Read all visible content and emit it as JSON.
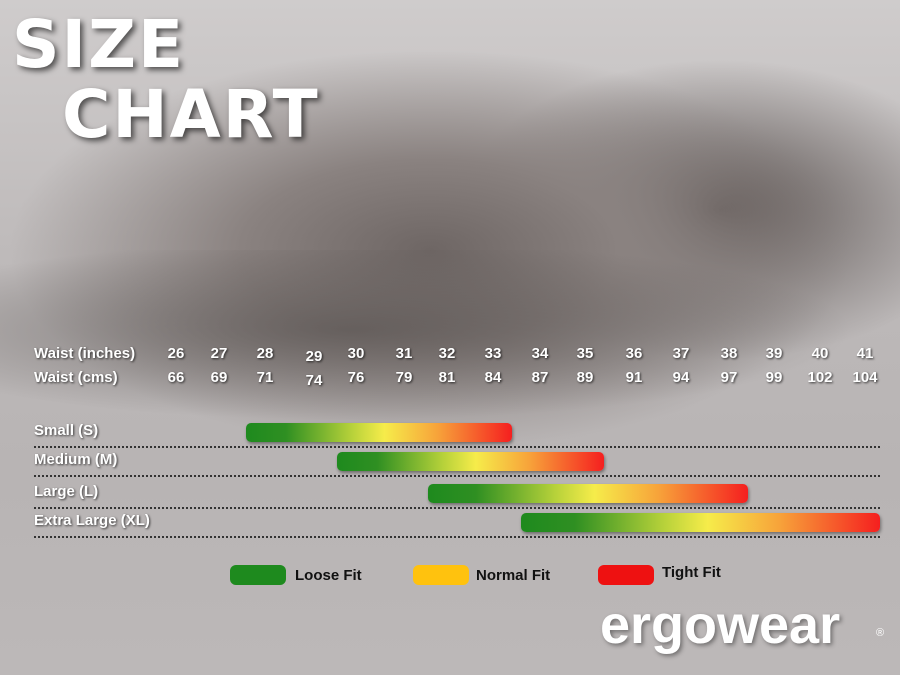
{
  "title_line1": "SIZE",
  "title_line2": "CHART",
  "chart_data": {
    "type": "table",
    "row_labels": [
      "Waist (inches)",
      "Waist (cms)"
    ],
    "waist_inches": [
      26,
      27,
      28,
      29,
      30,
      31,
      32,
      33,
      34,
      35,
      36,
      37,
      38,
      39,
      40,
      41
    ],
    "waist_cms": [
      66,
      69,
      71,
      74,
      76,
      79,
      81,
      84,
      87,
      89,
      91,
      94,
      97,
      99,
      102,
      104
    ],
    "sizes": [
      {
        "label": "Small (S)",
        "from_inches": 28,
        "to_inches": 33
      },
      {
        "label": "Medium (M)",
        "from_inches": 30,
        "to_inches": 35
      },
      {
        "label": "Large (L)",
        "from_inches": 32,
        "to_inches": 38
      },
      {
        "label": "Extra Large (XL)",
        "from_inches": 34,
        "to_inches": 41
      }
    ],
    "legend": [
      {
        "label": "Loose Fit",
        "color": "#1e8a1e"
      },
      {
        "label": "Normal Fit",
        "color": "#ffc20e"
      },
      {
        "label": "Tight Fit",
        "color": "#ee1111"
      }
    ]
  },
  "logo": {
    "text": "ergowear",
    "mark": "®"
  }
}
